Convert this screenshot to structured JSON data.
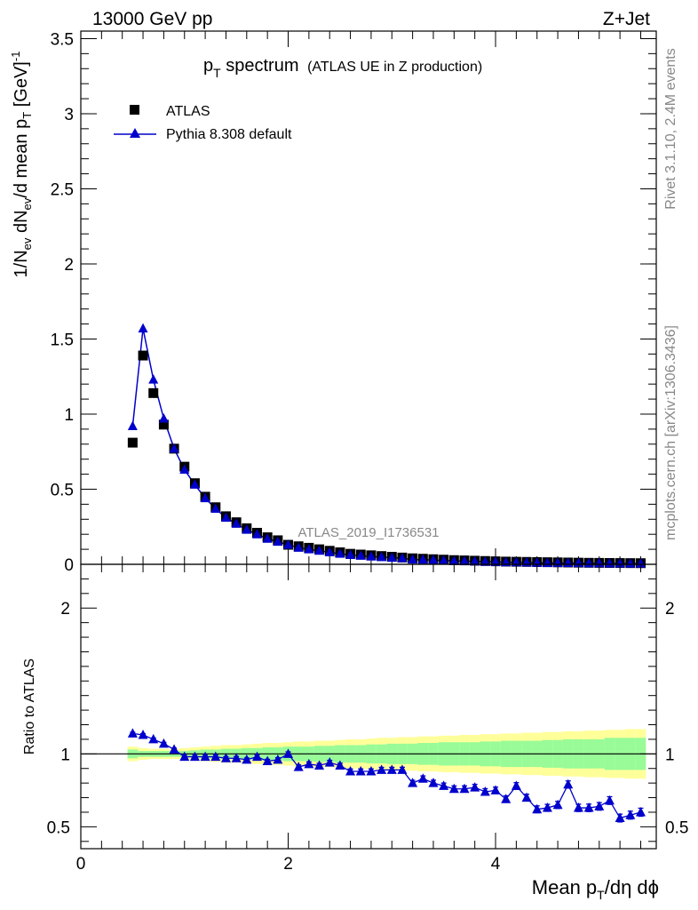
{
  "header": {
    "energy": "13000 GeV pp",
    "process": "Z+Jet"
  },
  "side": {
    "rivet": "Rivet 3.1.10,  2.4M events",
    "mcplots": "mcplots.cern.ch [arXiv:1306.3436]"
  },
  "analysis_id": "ATLAS_2019_I1736531",
  "title": {
    "main": "p",
    "sub": "T",
    "rest": " spectrum",
    "note": "(ATLAS UE in Z production)"
  },
  "axes": {
    "ylabel_top": "1/N_ev dN_ev/d mean p_T [GeV]^-1",
    "ylabel_bottom": "Ratio to ATLAS",
    "xlabel": "Mean p_T/dη dϕ"
  },
  "legend": {
    "data_label": "ATLAS",
    "mc_label": "Pythia 8.308 default"
  },
  "colors": {
    "data": "#000000",
    "mc": "#0000cc",
    "band_inner": "#98fb98",
    "band_outer": "#ffff99"
  },
  "chart_data": [
    {
      "type": "scatter",
      "panel": "main",
      "xlim": [
        0,
        5.55
      ],
      "ylim": [
        0,
        3.55
      ],
      "yticks": [
        "0",
        "0.5",
        "1",
        "1.5",
        "2",
        "2.5",
        "3",
        "3.5"
      ],
      "x": [
        0.5,
        0.6,
        0.7,
        0.8,
        0.9,
        1.0,
        1.1,
        1.2,
        1.3,
        1.4,
        1.5,
        1.6,
        1.7,
        1.8,
        1.9,
        2.0,
        2.1,
        2.2,
        2.3,
        2.4,
        2.5,
        2.6,
        2.7,
        2.8,
        2.9,
        3.0,
        3.1,
        3.2,
        3.3,
        3.4,
        3.5,
        3.6,
        3.7,
        3.8,
        3.9,
        4.0,
        4.1,
        4.2,
        4.3,
        4.4,
        4.5,
        4.6,
        4.7,
        4.8,
        4.9,
        5.0,
        5.1,
        5.2,
        5.3,
        5.4
      ],
      "series": [
        {
          "name": "ATLAS",
          "values": [
            0.81,
            1.39,
            1.14,
            0.93,
            0.77,
            0.65,
            0.54,
            0.45,
            0.38,
            0.32,
            0.28,
            0.24,
            0.21,
            0.18,
            0.16,
            0.13,
            0.12,
            0.11,
            0.1,
            0.09,
            0.08,
            0.07,
            0.065,
            0.06,
            0.055,
            0.05,
            0.045,
            0.04,
            0.037,
            0.034,
            0.031,
            0.028,
            0.026,
            0.024,
            0.022,
            0.02,
            0.018,
            0.017,
            0.016,
            0.015,
            0.014,
            0.013,
            0.012,
            0.011,
            0.01,
            0.0095,
            0.009,
            0.0085,
            0.008,
            0.0075
          ]
        },
        {
          "name": "Pythia 8.308 default",
          "values": [
            0.92,
            1.57,
            1.23,
            0.97,
            0.77,
            0.63,
            0.53,
            0.44,
            0.37,
            0.31,
            0.27,
            0.23,
            0.2,
            0.17,
            0.15,
            0.13,
            0.11,
            0.1,
            0.09,
            0.08,
            0.07,
            0.062,
            0.057,
            0.052,
            0.048,
            0.044,
            0.04,
            0.032,
            0.031,
            0.028,
            0.025,
            0.022,
            0.021,
            0.019,
            0.017,
            0.016,
            0.013,
            0.013,
            0.012,
            0.01,
            0.009,
            0.009,
            0.009,
            0.008,
            0.007,
            0.007,
            0.006,
            0.005,
            0.005,
            0.005
          ]
        }
      ]
    },
    {
      "type": "line",
      "panel": "ratio",
      "xlim": [
        0,
        5.55
      ],
      "ylim": [
        0.35,
        2.3
      ],
      "yticks": [
        "0.5",
        "1",
        "2"
      ],
      "xticks": [
        "0",
        "2",
        "4"
      ],
      "x": [
        0.5,
        0.6,
        0.7,
        0.8,
        0.9,
        1.0,
        1.1,
        1.2,
        1.3,
        1.4,
        1.5,
        1.6,
        1.7,
        1.8,
        1.9,
        2.0,
        2.1,
        2.2,
        2.3,
        2.4,
        2.5,
        2.6,
        2.7,
        2.8,
        2.9,
        3.0,
        3.1,
        3.2,
        3.3,
        3.4,
        3.5,
        3.6,
        3.7,
        3.8,
        3.9,
        4.0,
        4.1,
        4.2,
        4.3,
        4.4,
        4.5,
        4.6,
        4.7,
        4.8,
        4.9,
        5.0,
        5.1,
        5.2,
        5.3,
        5.4
      ],
      "series": [
        {
          "name": "Pythia 8.308 default",
          "values": [
            1.14,
            1.13,
            1.1,
            1.07,
            1.03,
            0.98,
            0.98,
            0.98,
            0.98,
            0.97,
            0.97,
            0.96,
            0.98,
            0.95,
            0.96,
            1.0,
            0.91,
            0.93,
            0.92,
            0.94,
            0.92,
            0.88,
            0.88,
            0.88,
            0.89,
            0.89,
            0.89,
            0.8,
            0.83,
            0.8,
            0.78,
            0.76,
            0.76,
            0.77,
            0.74,
            0.75,
            0.69,
            0.78,
            0.7,
            0.62,
            0.63,
            0.65,
            0.79,
            0.63,
            0.63,
            0.64,
            0.68,
            0.56,
            0.58,
            0.6
          ]
        },
        {
          "name": "ATLAS uncertainty inner",
          "values": [
            0.03,
            0.02,
            0.02,
            0.02,
            0.02,
            0.02,
            0.025,
            0.03,
            0.03,
            0.035,
            0.035,
            0.04,
            0.04,
            0.045,
            0.045,
            0.05,
            0.05,
            0.05,
            0.055,
            0.055,
            0.06,
            0.06,
            0.06,
            0.065,
            0.065,
            0.07,
            0.07,
            0.07,
            0.075,
            0.075,
            0.08,
            0.08,
            0.08,
            0.08,
            0.085,
            0.085,
            0.09,
            0.09,
            0.09,
            0.09,
            0.095,
            0.095,
            0.1,
            0.1,
            0.1,
            0.1,
            0.11,
            0.11,
            0.11,
            0.11
          ]
        },
        {
          "name": "ATLAS uncertainty outer",
          "values": [
            0.05,
            0.04,
            0.035,
            0.035,
            0.035,
            0.04,
            0.045,
            0.05,
            0.055,
            0.06,
            0.06,
            0.065,
            0.07,
            0.075,
            0.075,
            0.08,
            0.085,
            0.085,
            0.09,
            0.09,
            0.095,
            0.1,
            0.1,
            0.105,
            0.11,
            0.11,
            0.115,
            0.115,
            0.12,
            0.12,
            0.125,
            0.125,
            0.13,
            0.13,
            0.135,
            0.135,
            0.14,
            0.14,
            0.145,
            0.145,
            0.15,
            0.15,
            0.155,
            0.155,
            0.16,
            0.16,
            0.165,
            0.165,
            0.17,
            0.17
          ]
        }
      ]
    }
  ]
}
